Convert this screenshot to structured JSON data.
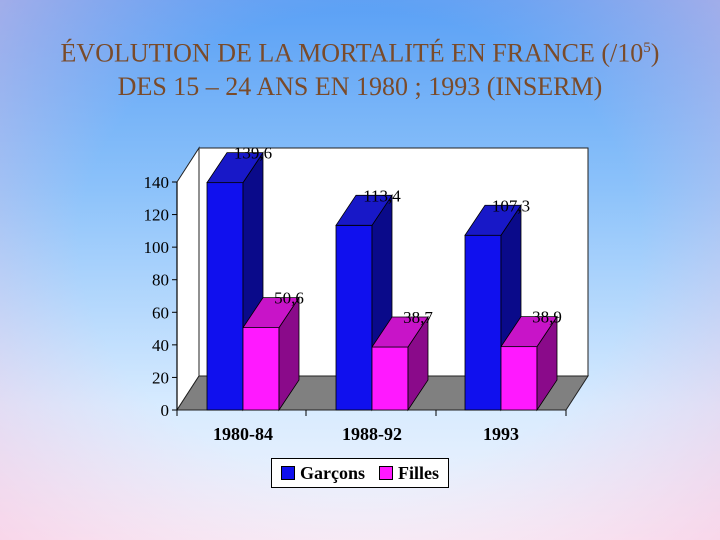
{
  "title": {
    "before_sup": "ÉVOLUTION DE LA MORTALITÉ EN FRANCE (/10",
    "sup": "5",
    "after_sup": ") DES 15 – 24 ANS EN 1980 ; 1993 (INSERM)"
  },
  "colors": {
    "garcons": "#1010ee",
    "filles": "#ff19ff"
  },
  "chart_data": {
    "type": "bar",
    "style": "3d-clustered",
    "categories": [
      "1980-84",
      "1988-92",
      "1993"
    ],
    "series": [
      {
        "name": "Garçons",
        "values": [
          139.6,
          113.4,
          107.3
        ],
        "labels": [
          "139,6",
          "113,4",
          "107,3"
        ]
      },
      {
        "name": "Filles",
        "values": [
          50.6,
          38.7,
          38.9
        ],
        "labels": [
          "50,6",
          "38,7",
          "38,9"
        ]
      }
    ],
    "ylim": [
      0,
      140
    ],
    "yticks": [
      "0",
      "20",
      "40",
      "60",
      "80",
      "100",
      "120",
      "140"
    ],
    "grid": false,
    "legend": "bottom"
  }
}
